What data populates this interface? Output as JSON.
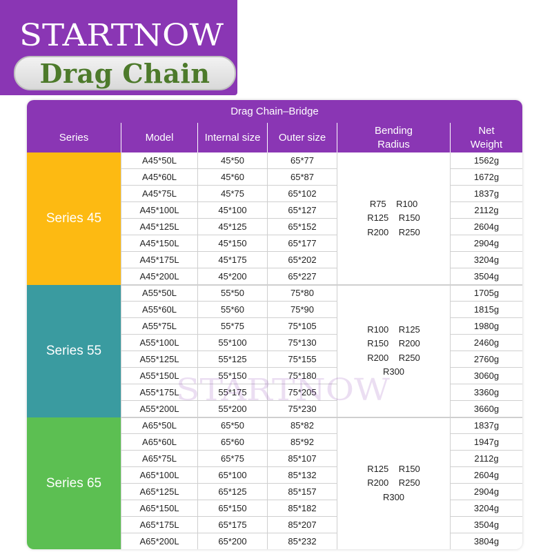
{
  "brand": {
    "logo_text": "STARTNOW",
    "purple": "#8a36b4"
  },
  "product_title": "Drag Chain",
  "table": {
    "title": "Drag Chain–Bridge",
    "headers": {
      "series": "Series",
      "model": "Model",
      "internal": "Internal size",
      "outer": "Outer size",
      "bending": "Bending\nRadius",
      "weight": "Net\nWeight"
    },
    "groups": [
      {
        "label": "Series 45",
        "color": "#fdba12",
        "radius_lines": [
          "R75    R100",
          "R125    R150",
          "R200    R250"
        ],
        "rows": [
          {
            "model": "A45*50L",
            "internal": "45*50",
            "outer": "65*77",
            "weight": "1562g"
          },
          {
            "model": "A45*60L",
            "internal": "45*60",
            "outer": "65*87",
            "weight": "1672g"
          },
          {
            "model": "A45*75L",
            "internal": "45*75",
            "outer": "65*102",
            "weight": "1837g"
          },
          {
            "model": "A45*100L",
            "internal": "45*100",
            "outer": "65*127",
            "weight": "2112g"
          },
          {
            "model": "A45*125L",
            "internal": "45*125",
            "outer": "65*152",
            "weight": "2604g"
          },
          {
            "model": "A45*150L",
            "internal": "45*150",
            "outer": "65*177",
            "weight": "2904g"
          },
          {
            "model": "A45*175L",
            "internal": "45*175",
            "outer": "65*202",
            "weight": "3204g"
          },
          {
            "model": "A45*200L",
            "internal": "45*200",
            "outer": "65*227",
            "weight": "3504g"
          }
        ]
      },
      {
        "label": "Series 55",
        "color": "#3a9ba0",
        "radius_lines": [
          "R100    R125",
          "R150    R200",
          "R200    R250",
          "R300"
        ],
        "rows": [
          {
            "model": "A55*50L",
            "internal": "55*50",
            "outer": "75*80",
            "weight": "1705g"
          },
          {
            "model": "A55*60L",
            "internal": "55*60",
            "outer": "75*90",
            "weight": "1815g"
          },
          {
            "model": "A55*75L",
            "internal": "55*75",
            "outer": "75*105",
            "weight": "1980g"
          },
          {
            "model": "A55*100L",
            "internal": "55*100",
            "outer": "75*130",
            "weight": "2460g"
          },
          {
            "model": "A55*125L",
            "internal": "55*125",
            "outer": "75*155",
            "weight": "2760g"
          },
          {
            "model": "A55*150L",
            "internal": "55*150",
            "outer": "75*180",
            "weight": "3060g"
          },
          {
            "model": "A55*175L",
            "internal": "55*175",
            "outer": "75*205",
            "weight": "3360g"
          },
          {
            "model": "A55*200L",
            "internal": "55*200",
            "outer": "75*230",
            "weight": "3660g"
          }
        ]
      },
      {
        "label": "Series 65",
        "color": "#5cbf52",
        "radius_lines": [
          "R125    R150",
          "R200    R250",
          "R300"
        ],
        "rows": [
          {
            "model": "A65*50L",
            "internal": "65*50",
            "outer": "85*82",
            "weight": "1837g"
          },
          {
            "model": "A65*60L",
            "internal": "65*60",
            "outer": "85*92",
            "weight": "1947g"
          },
          {
            "model": "A65*75L",
            "internal": "65*75",
            "outer": "85*107",
            "weight": "2112g"
          },
          {
            "model": "A65*100L",
            "internal": "65*100",
            "outer": "85*132",
            "weight": "2604g"
          },
          {
            "model": "A65*125L",
            "internal": "65*125",
            "outer": "85*157",
            "weight": "2904g"
          },
          {
            "model": "A65*150L",
            "internal": "65*150",
            "outer": "85*182",
            "weight": "3204g"
          },
          {
            "model": "A65*175L",
            "internal": "65*175",
            "outer": "85*207",
            "weight": "3504g"
          },
          {
            "model": "A65*200L",
            "internal": "65*200",
            "outer": "85*232",
            "weight": "3804g"
          }
        ]
      }
    ]
  }
}
